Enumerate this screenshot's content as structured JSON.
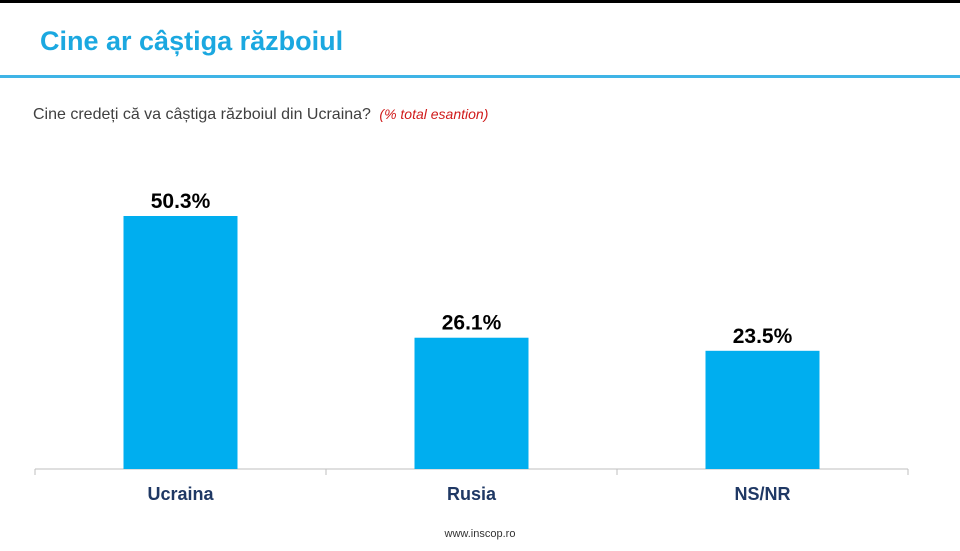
{
  "header": {
    "title": "Cine ar câștiga războiul"
  },
  "question": {
    "text": "Cine credeți că va câștiga războiul din Ucraina?",
    "note": "(% total esantion)"
  },
  "footer": {
    "url": "www.inscop.ro"
  },
  "chart_data": {
    "type": "bar",
    "categories": [
      "Ucraina",
      "Rusia",
      "NS/NR"
    ],
    "values": [
      50.3,
      26.1,
      23.5
    ],
    "value_labels": [
      "50.3%",
      "26.1%",
      "23.5%"
    ],
    "ylim": [
      0,
      50.3
    ],
    "grid": false,
    "legend": "none",
    "colors": {
      "bar": "#00aeef",
      "category_label": "#1f3864",
      "value_label": "#000000",
      "axis": "#bfbfbf"
    }
  }
}
